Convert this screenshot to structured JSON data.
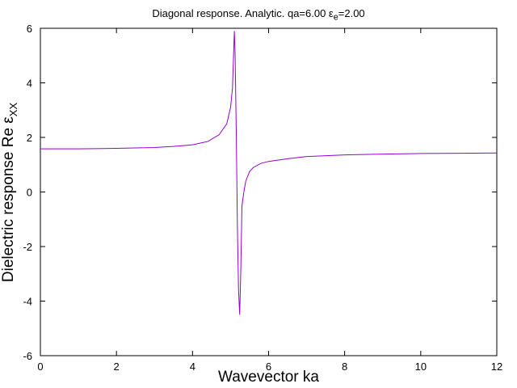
{
  "chart_data": {
    "type": "line",
    "title": "Diagonal response. Analytic. qa=6.00 ε",
    "title_sub": "e",
    "title_tail": "=2.00",
    "xlabel": "Wavevector ka",
    "ylabel": "Dielectric response Re ε",
    "ylabel_sub": "XX",
    "xlim": [
      0,
      12
    ],
    "ylim": [
      -6,
      6
    ],
    "xticks": [
      "0",
      "2",
      "4",
      "6",
      "8",
      "10",
      "12"
    ],
    "yticks": [
      "-6",
      "-4",
      "-2",
      "0",
      "2",
      "4",
      "6"
    ],
    "grid": false,
    "series": [
      {
        "color": "#9400d3",
        "x": [
          0.0,
          1.0,
          2.0,
          3.0,
          3.5,
          4.0,
          4.4,
          4.7,
          4.9,
          5.0,
          5.05,
          5.1,
          5.12,
          5.15,
          5.18,
          5.21,
          5.24,
          5.27,
          5.3,
          5.35,
          5.4,
          5.5,
          5.6,
          5.8,
          6.0,
          6.5,
          7.0,
          8.0,
          9.0,
          10.0,
          11.0,
          12.0
        ],
        "y": [
          1.58,
          1.58,
          1.6,
          1.63,
          1.67,
          1.73,
          1.85,
          2.1,
          2.5,
          3.1,
          3.8,
          5.9,
          5.0,
          2.2,
          -1.3,
          -3.6,
          -4.5,
          -2.8,
          -0.5,
          0.0,
          0.4,
          0.75,
          0.9,
          1.05,
          1.12,
          1.22,
          1.3,
          1.36,
          1.39,
          1.41,
          1.42,
          1.43
        ]
      }
    ]
  }
}
